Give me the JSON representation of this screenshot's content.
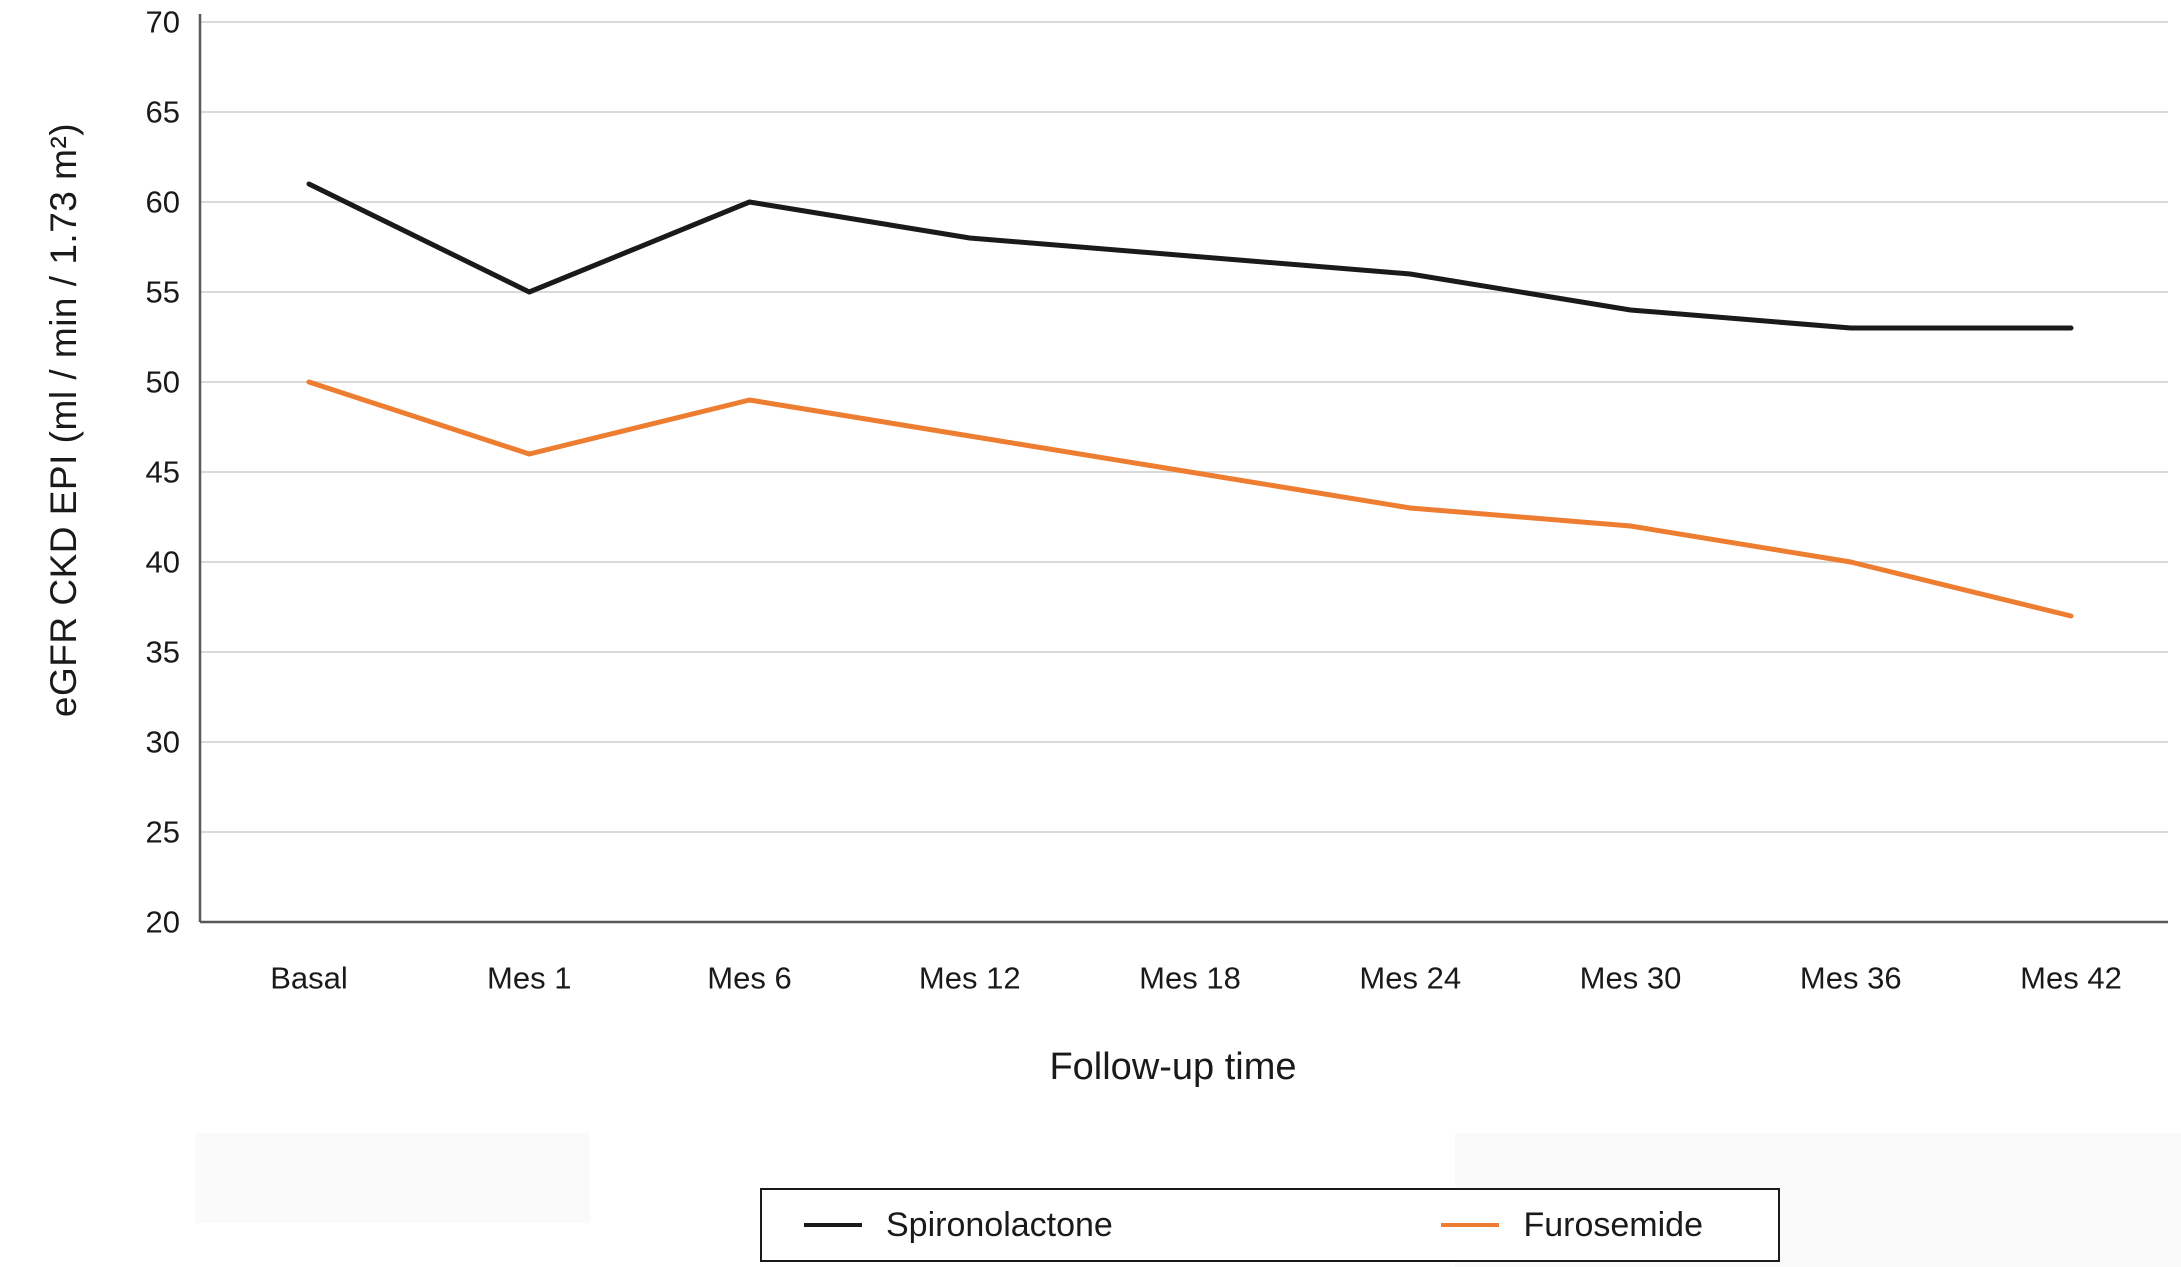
{
  "chart_data": {
    "type": "line",
    "title": "",
    "categories": [
      "Basal",
      "Mes 1",
      "Mes 6",
      "Mes 12",
      "Mes 18",
      "Mes 24",
      "Mes 30",
      "Mes 36",
      "Mes 42"
    ],
    "series": [
      {
        "name": "Spironolactone",
        "color": "#1a1a1a",
        "values": [
          61,
          55,
          60,
          58,
          57,
          56,
          54,
          53,
          53
        ]
      },
      {
        "name": "Furosemide",
        "color": "#ED7D31",
        "values": [
          50,
          46,
          49,
          47,
          45,
          43,
          42,
          40,
          37
        ]
      }
    ],
    "xlabel": "Follow-up time",
    "ylabel": "eGFR CKD EPI (ml / min / 1.73 m²)",
    "ylim": [
      20,
      70
    ],
    "ytick_step": 5,
    "grid": true,
    "legend_position": "bottom"
  },
  "colors": {
    "grid": "#d9d9d9",
    "axis": "#595959",
    "text": "#1a1a1a",
    "background": "#ffffff"
  }
}
